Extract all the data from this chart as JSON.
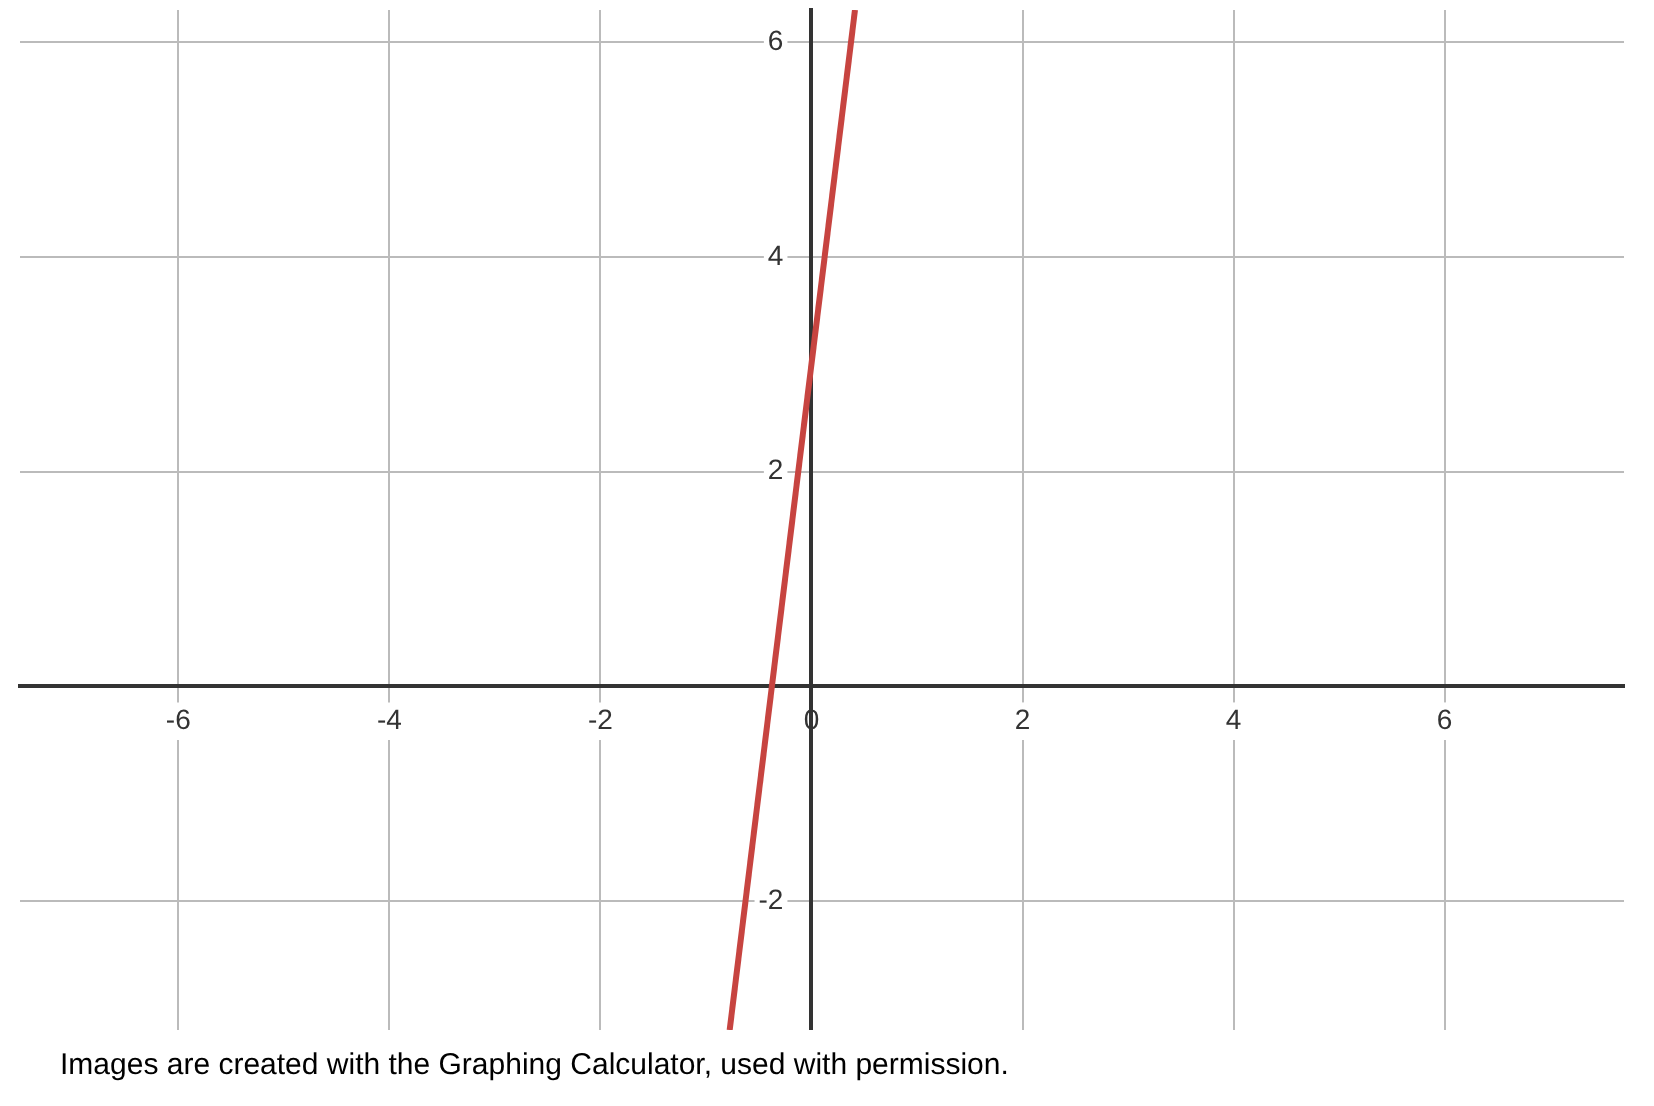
{
  "chart_data": {
    "type": "line",
    "x": [
      -0.775,
      0.4125
    ],
    "series": [
      {
        "color": "#c74440",
        "values": [
          -3.2,
          6.3
        ]
      }
    ],
    "xlim": [
      -7.5,
      7.7
    ],
    "ylim": [
      -3.2,
      6.3
    ],
    "xticks": [
      -6,
      -4,
      -2,
      0,
      2,
      4,
      6
    ],
    "yticks": [
      -2,
      2,
      4,
      6
    ],
    "grid": true,
    "legend": false,
    "marker": "none",
    "line_style": "solid",
    "annotations": [
      "Images are created with the Graphing Calculator, used with permission."
    ]
  }
}
